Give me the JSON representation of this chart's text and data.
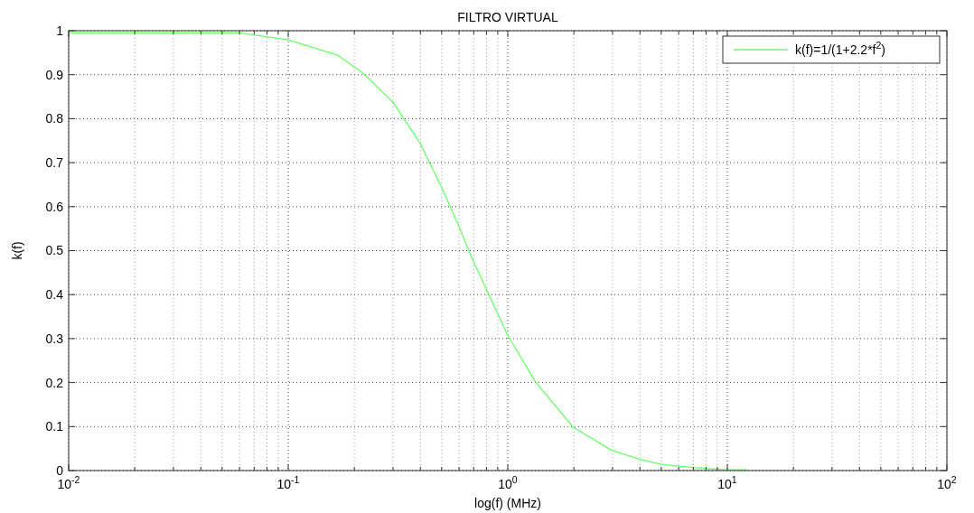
{
  "chart_data": {
    "type": "line",
    "title": "FILTRO VIRTUAL",
    "xlabel": "log(f)   (MHz)",
    "ylabel": "k(f)",
    "log": "x",
    "grid": true,
    "legend": "top right",
    "marker": "none",
    "line_style": "solid",
    "xlim": [
      0.01,
      100
    ],
    "xticks": [
      {
        "value": 0.01,
        "label": "10$^{-2}$"
      },
      {
        "value": 0.1,
        "label": "10$^{-1}$"
      },
      {
        "value": 1,
        "label": "10$^{0}$"
      },
      {
        "value": 10,
        "label": "10$^{1}$"
      },
      {
        "value": 100,
        "label": "10$^{2}$"
      }
    ],
    "ylim": [
      0,
      1
    ],
    "yticks": [
      0,
      0.1,
      0.2,
      0.3,
      0.4,
      0.5,
      0.6,
      0.7,
      0.8,
      0.9,
      1
    ],
    "series": [
      {
        "name": "k(f)=1/(1+2.2*f$^{2}$)",
        "color": "#66ff66",
        "x": [
          0.01,
          0.06,
          0.1,
          0.167,
          0.22,
          0.3,
          0.398,
          0.505,
          0.59,
          0.69,
          0.81,
          1.0,
          1.34,
          1.98,
          2.95,
          3.96,
          5.0,
          6.99,
          9.9,
          12.3
        ],
        "values": [
          0.995,
          0.995,
          0.979,
          0.945,
          0.903,
          0.837,
          0.745,
          0.639,
          0.563,
          0.481,
          0.406,
          0.307,
          0.201,
          0.099,
          0.047,
          0.026,
          0.014,
          0.007,
          0.002,
          0.002
        ]
      }
    ]
  }
}
